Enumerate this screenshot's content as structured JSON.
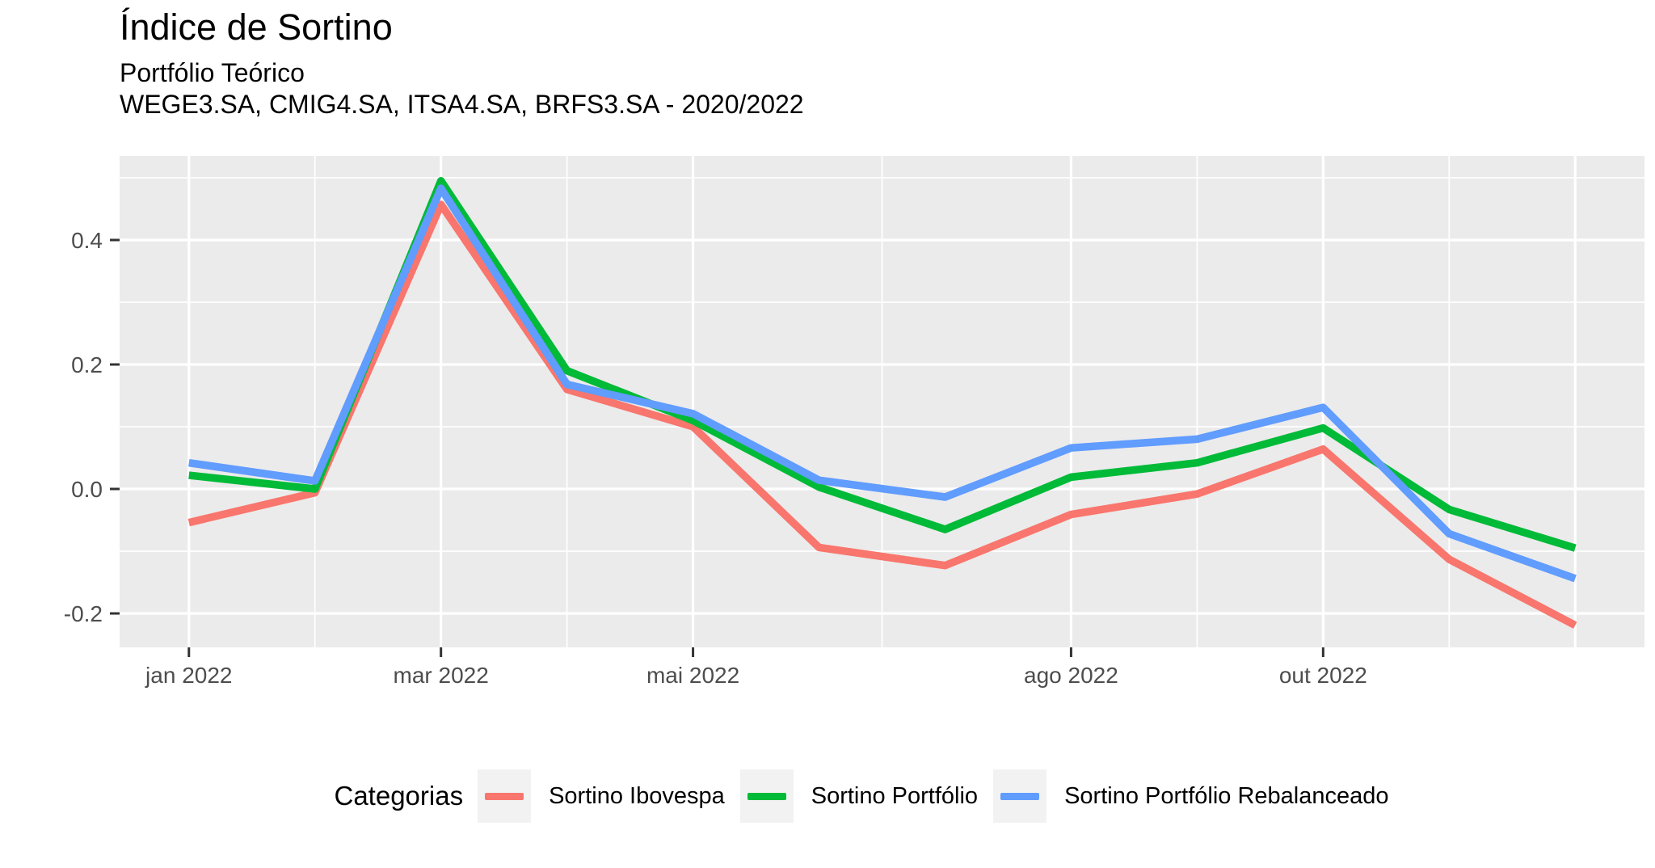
{
  "chart_data": {
    "type": "line",
    "title": "Índice de Sortino",
    "subtitle": "Portfólio Teórico",
    "subtitle2": "WEGE3.SA, CMIG4.SA, ITSA4.SA, BRFS3.SA - 2020/2022",
    "x_unit": "month of 2022, index 0 = jan 2022 through 11 = dez 2022",
    "x": [
      0,
      1,
      2,
      3,
      4,
      5,
      6,
      7,
      8,
      9,
      10,
      11
    ],
    "xlim": [
      -0.55,
      11.55
    ],
    "ylim": [
      -0.2545,
      0.535
    ],
    "x_tick_labels": [
      {
        "pos": 0,
        "label": "jan 2022"
      },
      {
        "pos": 2,
        "label": "mar 2022"
      },
      {
        "pos": 4,
        "label": "mai 2022"
      },
      {
        "pos": 7,
        "label": "ago 2022"
      },
      {
        "pos": 9,
        "label": "out 2022"
      }
    ],
    "x_major_gridlines": [
      0,
      2,
      4,
      7,
      9,
      11
    ],
    "x_minor_gridlines": [
      1,
      3,
      5.5,
      8,
      10
    ],
    "y_ticks": [
      {
        "value": -0.2,
        "label": "-0.2"
      },
      {
        "value": 0.0,
        "label": "0.0"
      },
      {
        "value": 0.2,
        "label": "0.2"
      },
      {
        "value": 0.4,
        "label": "0.4"
      }
    ],
    "y_minor_gridlines": [
      -0.1,
      0.1,
      0.3,
      0.5
    ],
    "grid": "white major and minor gridlines on gray panel",
    "panel_background": "#EBEBEB",
    "gridline_color": "#FFFFFF",
    "axis_text_color": "#4D4D4D",
    "tick_mark_color": "#333333",
    "legend_position": "bottom",
    "legend_title": "Categorias",
    "legend_key_background": "#F2F2F2",
    "series": [
      {
        "name": "Sortino Ibovespa",
        "color": "#F8766D",
        "values": [
          -0.054,
          -0.006,
          0.457,
          0.16,
          0.1,
          -0.094,
          -0.123,
          -0.041,
          -0.008,
          0.064,
          -0.113,
          -0.219
        ]
      },
      {
        "name": "Sortino Portfólio",
        "color": "#00BA38",
        "values": [
          0.022,
          0.0,
          0.495,
          0.19,
          0.11,
          0.003,
          -0.065,
          0.019,
          0.042,
          0.098,
          -0.033,
          -0.095
        ]
      },
      {
        "name": "Sortino Portfólio Rebalanceado",
        "color": "#619CFF",
        "values": [
          0.042,
          0.013,
          0.483,
          0.168,
          0.121,
          0.014,
          -0.013,
          0.066,
          0.08,
          0.131,
          -0.072,
          -0.144
        ]
      }
    ]
  }
}
